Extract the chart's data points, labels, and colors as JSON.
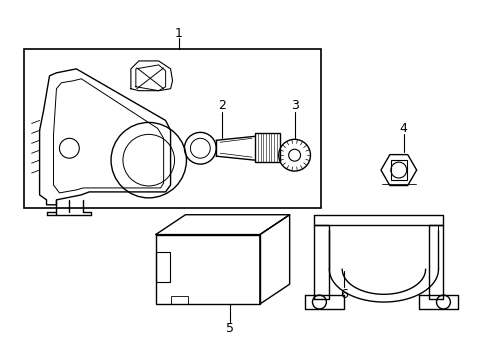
{
  "background_color": "#ffffff",
  "line_color": "#000000",
  "lw": 1.0,
  "fig_width": 4.89,
  "fig_height": 3.6
}
